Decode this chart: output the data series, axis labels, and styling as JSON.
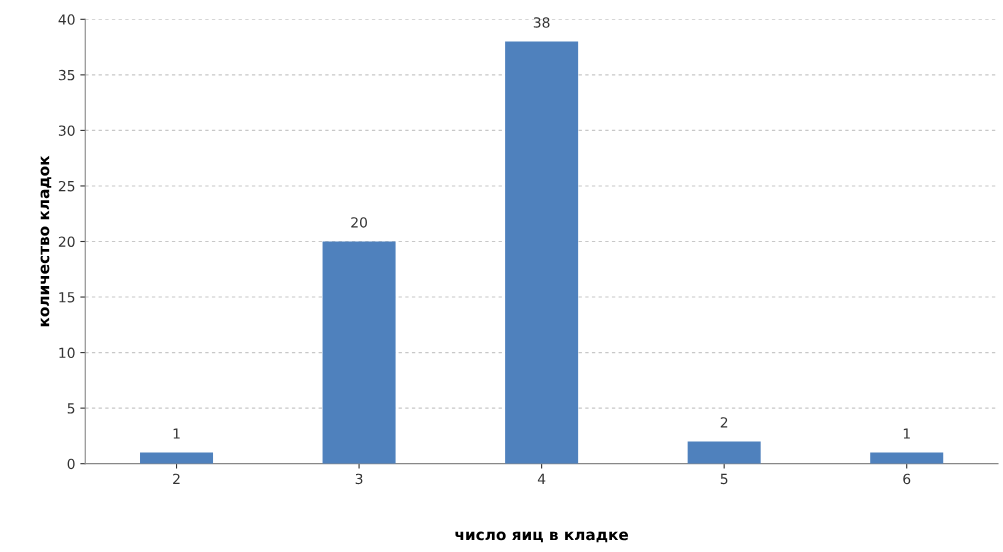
{
  "chart_data": {
    "type": "bar",
    "xlabel": "число яиц в кладке",
    "ylabel": "количество кладок",
    "categories": [
      "2",
      "3",
      "4",
      "5",
      "6"
    ],
    "values": [
      1,
      20,
      38,
      2,
      1
    ],
    "color": "#4f81bd",
    "ylim": [
      0,
      40
    ],
    "yticks": [
      0,
      5,
      10,
      15,
      20,
      25,
      30,
      35,
      40
    ],
    "grid": "y",
    "data_labels": true
  }
}
